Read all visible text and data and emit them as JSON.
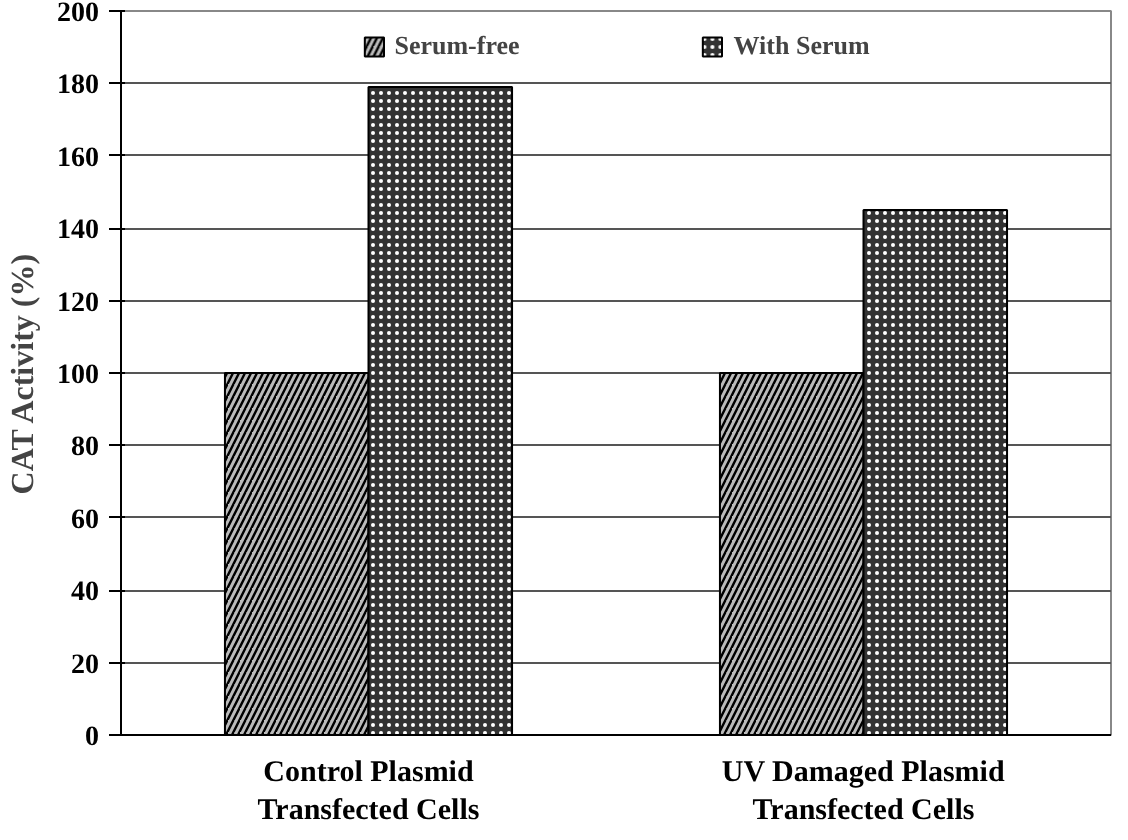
{
  "chart_data": {
    "type": "bar",
    "ylabel": "CAT Activity (%)",
    "categories": [
      "Control Plasmid\nTransfected Cells",
      "UV Damaged Plasmid\nTransfected Cells"
    ],
    "series": [
      {
        "name": "Serum-free",
        "color": "#bbbbbb",
        "values": [
          100,
          100
        ]
      },
      {
        "name": "With Serum",
        "color": "#333333",
        "values": [
          179,
          145
        ]
      }
    ],
    "ylim": [
      0,
      200
    ],
    "yticks": [
      0,
      20,
      40,
      60,
      80,
      100,
      120,
      140,
      160,
      180,
      200
    ],
    "grid": "y",
    "legend": "top"
  }
}
